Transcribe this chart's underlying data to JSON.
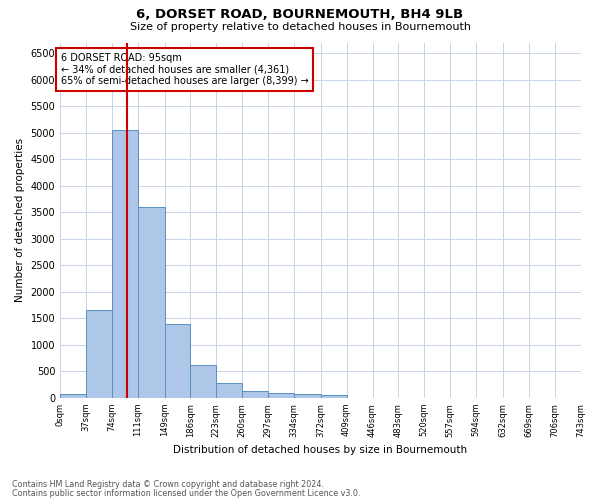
{
  "title": "6, DORSET ROAD, BOURNEMOUTH, BH4 9LB",
  "subtitle": "Size of property relative to detached houses in Bournemouth",
  "xlabel": "Distribution of detached houses by size in Bournemouth",
  "ylabel": "Number of detached properties",
  "bar_values": [
    75,
    1650,
    5060,
    3600,
    1400,
    620,
    290,
    140,
    100,
    80,
    60,
    0,
    0,
    0,
    0,
    0,
    0,
    0,
    0,
    0
  ],
  "bin_edges": [
    0,
    37,
    74,
    111,
    149,
    186,
    223,
    260,
    297,
    334,
    372,
    409,
    446,
    483,
    520,
    557,
    594,
    632,
    669,
    706,
    743
  ],
  "tick_labels": [
    "0sqm",
    "37sqm",
    "74sqm",
    "111sqm",
    "149sqm",
    "186sqm",
    "223sqm",
    "260sqm",
    "297sqm",
    "334sqm",
    "372sqm",
    "409sqm",
    "446sqm",
    "483sqm",
    "520sqm",
    "557sqm",
    "594sqm",
    "632sqm",
    "669sqm",
    "706sqm",
    "743sqm"
  ],
  "bar_color": "#aec6e8",
  "bar_edge_color": "#5a8fc0",
  "property_line_x": 95,
  "property_line_color": "#cc0000",
  "annotation_text": "6 DORSET ROAD: 95sqm\n← 34% of detached houses are smaller (4,361)\n65% of semi-detached houses are larger (8,399) →",
  "annotation_box_color": "#cc0000",
  "ylim": [
    0,
    6700
  ],
  "yticks": [
    0,
    500,
    1000,
    1500,
    2000,
    2500,
    3000,
    3500,
    4000,
    4500,
    5000,
    5500,
    6000,
    6500
  ],
  "background_color": "#ffffff",
  "grid_color": "#c8d4e8",
  "footer_line1": "Contains HM Land Registry data © Crown copyright and database right 2024.",
  "footer_line2": "Contains public sector information licensed under the Open Government Licence v3.0."
}
